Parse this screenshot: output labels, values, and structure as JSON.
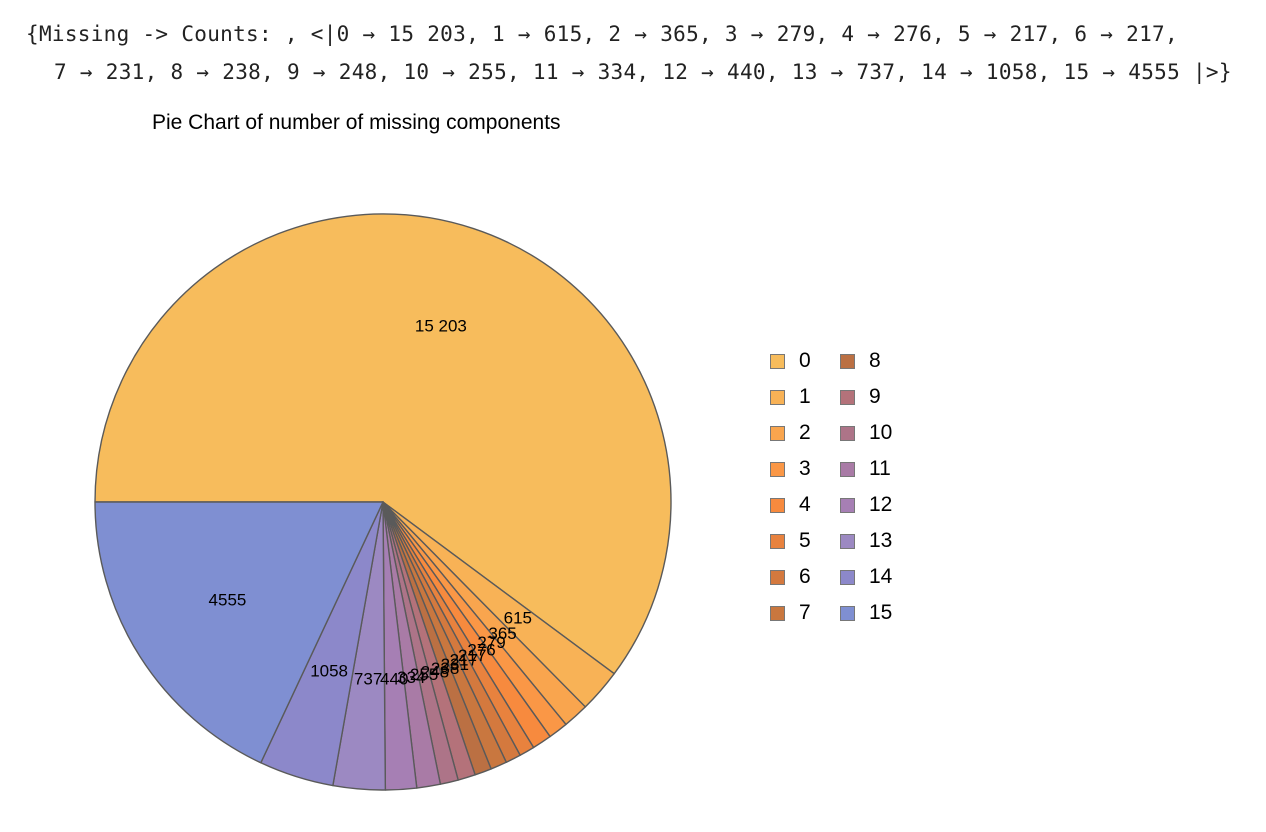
{
  "output": {
    "line1": "{Missing -> Counts: , <|0 → 15 203, 1 → 615, 2 → 365, 3 → 279, 4 → 276, 5 → 217, 6 → 217,",
    "line2": "7 → 231, 8 → 238, 9 → 248, 10 → 255, 11 → 334, 12 → 440, 13 → 737, 14 → 1058, 15 → 4555 |>}"
  },
  "chart_data": {
    "type": "pie",
    "title": "Pie Chart of number of missing components",
    "categories": [
      "0",
      "1",
      "2",
      "3",
      "4",
      "5",
      "6",
      "7",
      "8",
      "9",
      "10",
      "11",
      "12",
      "13",
      "14",
      "15"
    ],
    "values": [
      15203,
      615,
      365,
      279,
      276,
      217,
      217,
      231,
      238,
      248,
      255,
      334,
      440,
      737,
      1058,
      4555
    ],
    "value_labels": [
      "15 203",
      "615",
      "365",
      "279",
      "276",
      "217",
      "217",
      "231",
      "238",
      "248",
      "255",
      "334",
      "440",
      "737",
      "1058",
      "4555"
    ],
    "colors": [
      "#F7BC5C",
      "#F8B256",
      "#F9A54E",
      "#FA9746",
      "#F78A3E",
      "#E8823E",
      "#D4793E",
      "#C9773F",
      "#BB7043",
      "#B4727A",
      "#AD7488",
      "#A97BA6",
      "#A67FB4",
      "#9C89C2",
      "#8C88CA",
      "#7F8FD2"
    ],
    "legend_position": "right",
    "legend_columns": 2
  }
}
